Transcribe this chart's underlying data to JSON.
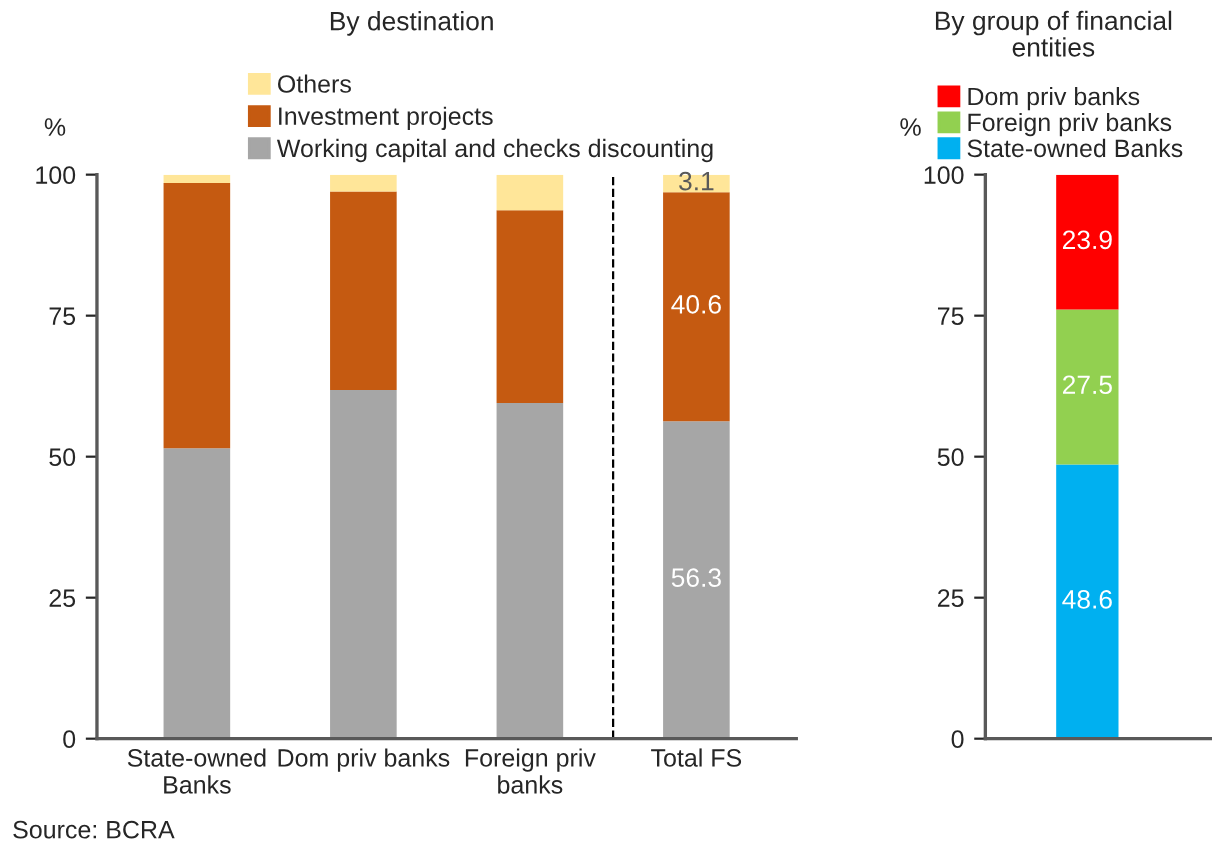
{
  "chart_data": [
    {
      "type": "bar",
      "stacked": true,
      "title": "By destination",
      "ylabel": "%",
      "categories": [
        "State-owned\nBanks",
        "Dom priv banks",
        "Foreign priv\nbanks",
        "Total FS"
      ],
      "ylim": [
        0,
        100
      ],
      "yticks": [
        0,
        25,
        50,
        75,
        100
      ],
      "grid": false,
      "legend": "top",
      "series": [
        {
          "name": "Working capital and checks discounting",
          "color": "#a6a6a6",
          "values": [
            51.5,
            61.8,
            59.5,
            56.3
          ],
          "value_labels": [
            null,
            null,
            null,
            "56.3"
          ]
        },
        {
          "name": "Investment projects",
          "color": "#c55a11",
          "values": [
            47.0,
            35.2,
            34.2,
            40.6
          ],
          "value_labels": [
            null,
            null,
            null,
            "40.6"
          ]
        },
        {
          "name": "Others",
          "color": "#ffe699",
          "values": [
            1.5,
            3.0,
            6.3,
            3.1
          ],
          "value_labels": [
            null,
            null,
            null,
            "3.1"
          ]
        }
      ],
      "annotations": [
        "Source: BCRA"
      ]
    },
    {
      "type": "bar",
      "stacked": true,
      "title": "By group of financial entities",
      "ylabel": "%",
      "categories": [
        null
      ],
      "ylim": [
        0,
        100
      ],
      "yticks": [
        0,
        25,
        50,
        75,
        100
      ],
      "grid": false,
      "legend": "top",
      "data_labels": true,
      "series": [
        {
          "name": "State-owned Banks",
          "color": "#00b0f0",
          "values": [
            48.6
          ]
        },
        {
          "name": "Foreign priv banks",
          "color": "#92d050",
          "values": [
            27.5
          ]
        },
        {
          "name": "Dom priv banks",
          "color": "#ff0000",
          "values": [
            23.9
          ]
        }
      ]
    }
  ]
}
